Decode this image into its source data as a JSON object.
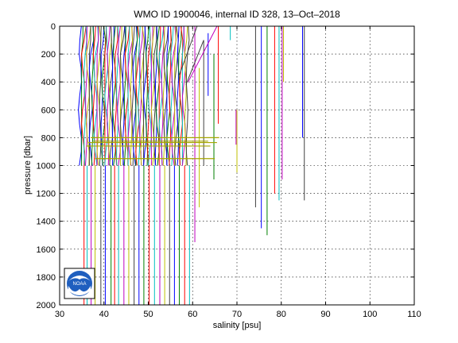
{
  "chart_data": {
    "type": "line",
    "title": "WMO ID 1900046, internal ID 328, 13–Oct–2018",
    "xlabel": "salinity [psu]",
    "ylabel": "pressure [dbar]",
    "xlim": [
      30,
      110
    ],
    "ylim": [
      0,
      2000
    ],
    "y_reversed": true,
    "grid": true,
    "xticks": [
      "30",
      "40",
      "50",
      "60",
      "70",
      "80",
      "90",
      "100",
      "110"
    ],
    "yticks": [
      "0",
      "200",
      "400",
      "600",
      "800",
      "1000",
      "1200",
      "1400",
      "1600",
      "1800",
      "2000"
    ],
    "series_palette": [
      "#0000ff",
      "#008000",
      "#ff0000",
      "#00bfbf",
      "#bf00bf",
      "#bfbf00",
      "#404040"
    ],
    "profiles": {
      "main_block": {
        "x_start": 34.6,
        "x_step": 0.35,
        "count": 70,
        "p_top": 0,
        "p_bottom": 1000
      },
      "deep_lines": [
        {
          "x": 35.5,
          "p": [
            1000,
            2000
          ]
        },
        {
          "x": 36.2,
          "p": [
            1000,
            2000
          ]
        },
        {
          "x": 37.1,
          "p": [
            1000,
            2000
          ]
        },
        {
          "x": 38.0,
          "p": [
            1000,
            2000
          ]
        },
        {
          "x": 39.3,
          "p": [
            1000,
            2000
          ]
        },
        {
          "x": 40.3,
          "p": [
            1000,
            2000
          ]
        },
        {
          "x": 41.6,
          "p": [
            1000,
            2000
          ]
        },
        {
          "x": 42.4,
          "p": [
            1000,
            2000
          ]
        },
        {
          "x": 43.3,
          "p": [
            1000,
            2000
          ]
        },
        {
          "x": 44.5,
          "p": [
            1000,
            2000
          ]
        },
        {
          "x": 45.6,
          "p": [
            1000,
            2000
          ]
        },
        {
          "x": 46.8,
          "p": [
            1000,
            2000
          ]
        },
        {
          "x": 47.9,
          "p": [
            1000,
            2000
          ]
        },
        {
          "x": 49.0,
          "p": [
            1000,
            2000
          ]
        },
        {
          "x": 50.2,
          "p": [
            1000,
            2000
          ]
        },
        {
          "x": 51.4,
          "p": [
            1000,
            2000
          ]
        },
        {
          "x": 52.6,
          "p": [
            1000,
            2000
          ]
        },
        {
          "x": 53.7,
          "p": [
            1000,
            2000
          ]
        },
        {
          "x": 54.8,
          "p": [
            1000,
            2000
          ]
        },
        {
          "x": 55.9,
          "p": [
            1000,
            2000
          ]
        },
        {
          "x": 57.0,
          "p": [
            1000,
            2000
          ]
        },
        {
          "x": 58.2,
          "p": [
            1000,
            2000
          ]
        },
        {
          "x": 59.3,
          "p": [
            1000,
            2000
          ]
        }
      ],
      "mid_lines": [
        {
          "x": 60.5,
          "p": [
            0,
            1550
          ]
        },
        {
          "x": 61.5,
          "p": [
            300,
            1300
          ]
        },
        {
          "x": 62.5,
          "p": [
            100,
            1000
          ]
        },
        {
          "x": 63.5,
          "p": [
            50,
            500
          ]
        },
        {
          "x": 64.8,
          "p": [
            200,
            1100
          ]
        },
        {
          "x": 65.8,
          "p": [
            0,
            700
          ]
        },
        {
          "x": 68.5,
          "p": [
            0,
            100
          ]
        },
        {
          "x": 69.8,
          "p": [
            600,
            850
          ]
        },
        {
          "x": 70.0,
          "p": [
            600,
            1050
          ]
        },
        {
          "x": 74.2,
          "p": [
            0,
            1300
          ]
        },
        {
          "x": 75.5,
          "p": [
            0,
            1450
          ]
        },
        {
          "x": 76.8,
          "p": [
            0,
            1500
          ]
        },
        {
          "x": 78.5,
          "p": [
            0,
            1200
          ]
        },
        {
          "x": 79.5,
          "p": [
            0,
            1250
          ]
        },
        {
          "x": 80.2,
          "p": [
            0,
            1100
          ]
        },
        {
          "x": 80.5,
          "p": [
            0,
            400
          ]
        },
        {
          "x": 85.2,
          "p": [
            0,
            1250
          ]
        },
        {
          "x": 84.8,
          "p": [
            0,
            800
          ]
        }
      ],
      "horizontal_lines": [
        {
          "x": [
            37.0,
            66.0
          ],
          "p": 800
        },
        {
          "x": [
            37.5,
            63.5
          ],
          "p": 825
        },
        {
          "x": [
            36.5,
            65.5
          ],
          "p": 835
        },
        {
          "x": [
            36.0,
            64.0
          ],
          "p": 860
        },
        {
          "x": [
            38.0,
            65.0
          ],
          "p": 950
        }
      ],
      "diagonal_lines": [
        {
          "x": [
            59.0,
            65.5
          ],
          "p": [
            400,
            0
          ]
        },
        {
          "x": [
            58.5,
            62.5
          ],
          "p": [
            420,
            100
          ]
        },
        {
          "x": [
            57.0,
            61.0
          ],
          "p": [
            350,
            0
          ]
        }
      ]
    }
  },
  "logo": {
    "text": "NOAA"
  }
}
